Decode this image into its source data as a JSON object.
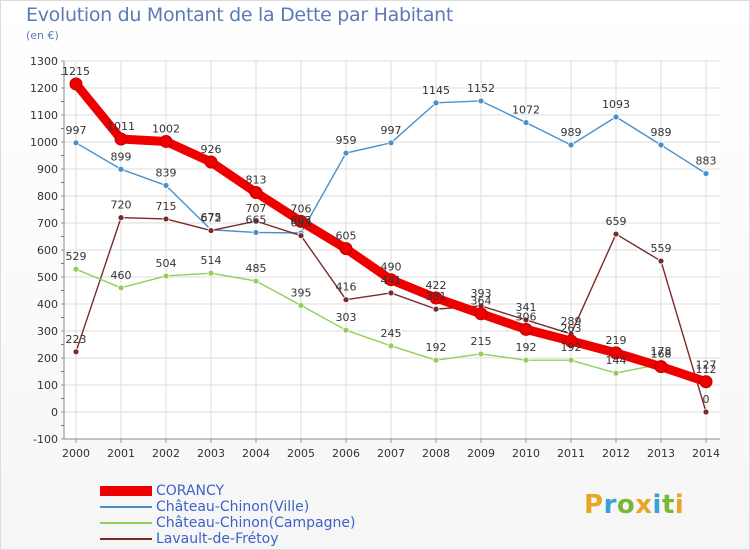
{
  "title": "Evolution du Montant de la Dette par Habitant",
  "subtitle": "(en €)",
  "logo": {
    "text": "Proxiti",
    "colors": [
      "#e8a628",
      "#3aa0d8",
      "#79b734",
      "#e8a628",
      "#3aa0d8",
      "#79b734",
      "#e8a628"
    ]
  },
  "chart_data": {
    "type": "line",
    "x": [
      "2000",
      "2001",
      "2002",
      "2003",
      "2004",
      "2005",
      "2006",
      "2007",
      "2008",
      "2009",
      "2010",
      "2011",
      "2012",
      "2013",
      "2014"
    ],
    "ylim": [
      -100,
      1300
    ],
    "yticks": [
      "-100",
      "0",
      "100",
      "200",
      "300",
      "400",
      "500",
      "600",
      "700",
      "800",
      "900",
      "1000",
      "1100",
      "1200",
      "1300"
    ],
    "grid": true,
    "legend_position": "bottom",
    "series": [
      {
        "name": "CORANCY",
        "color": "#ee0000",
        "values": [
          1215,
          1011,
          1002,
          926,
          813,
          706,
          605,
          490,
          422,
          364,
          306,
          263,
          219,
          168,
          112
        ],
        "labels": [
          "1215",
          "1011",
          "1002",
          "926",
          "813",
          "706",
          "605",
          "490",
          "422",
          "364",
          "306",
          "263",
          "219",
          "168",
          "112"
        ]
      },
      {
        "name": "Château-Chinon(Ville)",
        "color": "#4a90c8",
        "values": [
          997,
          899,
          839,
          675,
          665,
          663,
          959,
          997,
          1145,
          1152,
          1072,
          989,
          1093,
          989,
          883
        ],
        "labels": [
          "997",
          "899",
          "839",
          "675",
          "665",
          "663",
          "959",
          "997",
          "1145",
          "1152",
          "1072",
          "989",
          "1093",
          "989",
          "883"
        ]
      },
      {
        "name": "Château-Chinon(Campagne)",
        "color": "#8fd05a",
        "values": [
          529,
          460,
          504,
          514,
          485,
          395,
          303,
          245,
          192,
          215,
          192,
          192,
          144,
          178,
          127
        ],
        "labels": [
          "529",
          "460",
          "504",
          "514",
          "485",
          "395",
          "303",
          "245",
          "192",
          "215",
          "192",
          "192",
          "144",
          "178",
          "127"
        ]
      },
      {
        "name": "Lavault-de-Frétoy",
        "color": "#7a2a2a",
        "values": [
          223,
          720,
          715,
          672,
          707,
          653,
          416,
          441,
          381,
          393,
          341,
          289,
          659,
          559,
          0
        ],
        "labels": [
          "223",
          "720",
          "715",
          "672",
          "707",
          "653",
          "416",
          "441",
          "381",
          "393",
          "341",
          "289",
          "659",
          "559",
          "0"
        ]
      }
    ]
  }
}
